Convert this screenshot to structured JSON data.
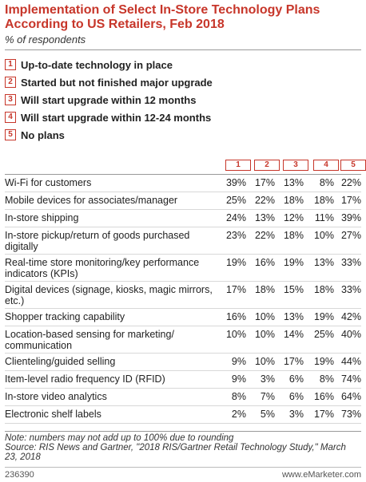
{
  "chart_data": {
    "type": "table",
    "title": "Implementation of Select In-Store Technology Plans According to US Retailers, Feb 2018",
    "subtitle": "% of respondents",
    "legend": [
      {
        "key": "1",
        "label": "Up-to-date technology in place"
      },
      {
        "key": "2",
        "label": "Started but not finished major upgrade"
      },
      {
        "key": "3",
        "label": "Will start upgrade within 12 months"
      },
      {
        "key": "4",
        "label": "Will start upgrade within 12-24 months"
      },
      {
        "key": "5",
        "label": "No plans"
      }
    ],
    "columns": [
      "1",
      "2",
      "3",
      "4",
      "5"
    ],
    "rows": [
      {
        "label": "Wi-Fi for customers",
        "values": [
          "39%",
          "17%",
          "13%",
          "8%",
          "22%"
        ]
      },
      {
        "label": "Mobile devices for associates/manager",
        "values": [
          "25%",
          "22%",
          "18%",
          "18%",
          "17%"
        ]
      },
      {
        "label": "In-store shipping",
        "values": [
          "24%",
          "13%",
          "12%",
          "11%",
          "39%"
        ]
      },
      {
        "label": "In-store pickup/return of goods purchased digitally",
        "values": [
          "23%",
          "22%",
          "18%",
          "10%",
          "27%"
        ]
      },
      {
        "label": "Real-time store monitoring/key performance indicators (KPIs)",
        "values": [
          "19%",
          "16%",
          "19%",
          "13%",
          "33%"
        ]
      },
      {
        "label": "Digital devices (signage, kiosks, magic mirrors, etc.)",
        "values": [
          "17%",
          "18%",
          "15%",
          "18%",
          "33%"
        ]
      },
      {
        "label": "Shopper tracking capability",
        "values": [
          "16%",
          "10%",
          "13%",
          "19%",
          "42%"
        ]
      },
      {
        "label": "Location-based sensing for marketing/ communication",
        "values": [
          "10%",
          "10%",
          "14%",
          "25%",
          "40%"
        ]
      },
      {
        "label": "Clienteling/guided selling",
        "values": [
          "9%",
          "10%",
          "17%",
          "19%",
          "44%"
        ]
      },
      {
        "label": "Item-level radio frequency ID (RFID)",
        "values": [
          "9%",
          "3%",
          "6%",
          "8%",
          "74%"
        ]
      },
      {
        "label": "In-store video analytics",
        "values": [
          "8%",
          "7%",
          "6%",
          "16%",
          "64%"
        ]
      },
      {
        "label": "Electronic shelf labels",
        "values": [
          "2%",
          "5%",
          "3%",
          "17%",
          "73%"
        ]
      }
    ],
    "note": "Note: numbers may not add up to 100% due to rounding",
    "source": "Source: RIS News and Gartner, \"2018 RIS/Gartner Retail Technology Study,\" March 23, 2018"
  },
  "footer": {
    "id": "236390",
    "brand": "www.eMarketer.com"
  },
  "colors": {
    "accent": "#c7362a",
    "text": "#222222"
  }
}
